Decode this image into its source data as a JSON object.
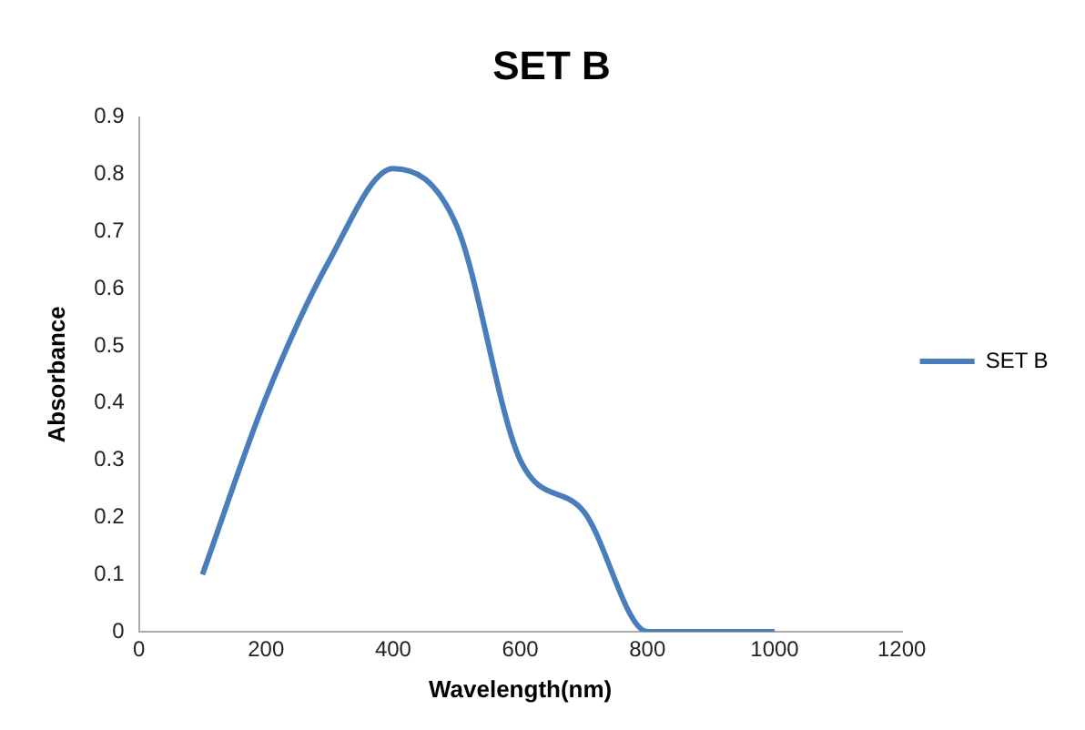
{
  "chart_data": {
    "type": "line",
    "title": "SET B",
    "xlabel": "Wavelength(nm)",
    "ylabel": "Absorbance",
    "x": [
      100,
      200,
      300,
      400,
      500,
      600,
      700,
      800,
      900,
      1000
    ],
    "series": [
      {
        "name": "SET B",
        "color": "#4a7ebb",
        "values": [
          0.1,
          0.41,
          0.65,
          0.81,
          0.71,
          0.3,
          0.21,
          0.0,
          0.0,
          0.0
        ]
      }
    ],
    "xlim": [
      0,
      1200
    ],
    "xticks": [
      0,
      200,
      400,
      600,
      800,
      1000,
      1200
    ],
    "ylim": [
      0,
      0.9
    ],
    "yticks": [
      0,
      0.1,
      0.2,
      0.3,
      0.4,
      0.5,
      0.6,
      0.7,
      0.8,
      0.9
    ],
    "grid": false,
    "legend": "right",
    "marker": "none",
    "line_style": "solid"
  }
}
